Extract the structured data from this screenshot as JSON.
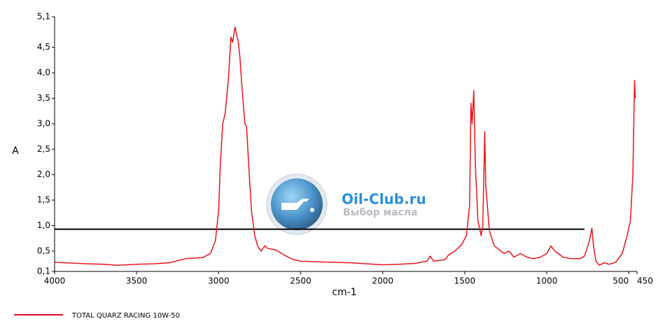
{
  "chart_data": {
    "type": "line",
    "x_label": "cm-1",
    "y_label": "A",
    "xlim": [
      4000,
      450
    ],
    "ylim": [
      0.1,
      5.1
    ],
    "xticks": [
      4000,
      3500,
      3000,
      2500,
      2000,
      1500,
      1000,
      500,
      450
    ],
    "yticks": [
      {
        "value": 0.1,
        "label": "0,1"
      },
      {
        "value": 0.5,
        "label": "0,5"
      },
      {
        "value": 1.0,
        "label": "1,0"
      },
      {
        "value": 1.5,
        "label": "1,5"
      },
      {
        "value": 2.0,
        "label": "2,0"
      },
      {
        "value": 2.5,
        "label": "2,5"
      },
      {
        "value": 3.0,
        "label": "3,0"
      },
      {
        "value": 3.5,
        "label": "3,5"
      },
      {
        "value": 4.0,
        "label": "4,0"
      },
      {
        "value": 4.5,
        "label": "4,5"
      },
      {
        "value": 5.1,
        "label": "5,1"
      }
    ],
    "reference_line": {
      "y": 0.93,
      "x": [
        4000,
        770
      ],
      "color": "#000000"
    },
    "watermark": {
      "title": "Oil-Club.ru",
      "subtitle": "Выбор масла"
    },
    "series": [
      {
        "name": "TOTAL QUARZ RACING 10W-50",
        "color": "#e8141b",
        "x": [
          4000,
          3800,
          3700,
          3620,
          3500,
          3400,
          3300,
          3200,
          3100,
          3050,
          3020,
          3000,
          2990,
          2975,
          2960,
          2940,
          2925,
          2915,
          2900,
          2890,
          2880,
          2870,
          2860,
          2850,
          2840,
          2830,
          2815,
          2800,
          2780,
          2760,
          2740,
          2720,
          2700,
          2650,
          2600,
          2550,
          2500,
          2400,
          2200,
          2000,
          1900,
          1800,
          1730,
          1710,
          1690,
          1620,
          1600,
          1560,
          1520,
          1490,
          1470,
          1462,
          1455,
          1445,
          1435,
          1420,
          1400,
          1390,
          1378,
          1372,
          1365,
          1350,
          1320,
          1300,
          1260,
          1230,
          1200,
          1160,
          1120,
          1080,
          1040,
          1000,
          975,
          950,
          900,
          850,
          800,
          770,
          740,
          725,
          715,
          700,
          680,
          650,
          620,
          580,
          540,
          510,
          490,
          475,
          465,
          460
        ],
        "values": [
          0.28,
          0.25,
          0.24,
          0.22,
          0.24,
          0.25,
          0.27,
          0.35,
          0.37,
          0.45,
          0.7,
          1.3,
          2.2,
          3.0,
          3.2,
          3.9,
          4.7,
          4.6,
          4.9,
          4.75,
          4.6,
          4.3,
          3.8,
          3.4,
          3.0,
          2.95,
          2.1,
          1.3,
          0.8,
          0.58,
          0.5,
          0.6,
          0.55,
          0.52,
          0.42,
          0.34,
          0.3,
          0.29,
          0.27,
          0.23,
          0.24,
          0.26,
          0.3,
          0.4,
          0.3,
          0.33,
          0.42,
          0.5,
          0.62,
          0.8,
          1.4,
          3.4,
          3.0,
          3.65,
          2.2,
          1.1,
          0.8,
          1.0,
          2.85,
          1.8,
          1.5,
          0.9,
          0.6,
          0.55,
          0.45,
          0.5,
          0.38,
          0.45,
          0.38,
          0.35,
          0.38,
          0.45,
          0.6,
          0.5,
          0.38,
          0.35,
          0.35,
          0.4,
          0.7,
          0.95,
          0.6,
          0.3,
          0.22,
          0.27,
          0.24,
          0.28,
          0.45,
          0.8,
          1.1,
          2.0,
          3.85,
          3.5
        ]
      }
    ]
  }
}
